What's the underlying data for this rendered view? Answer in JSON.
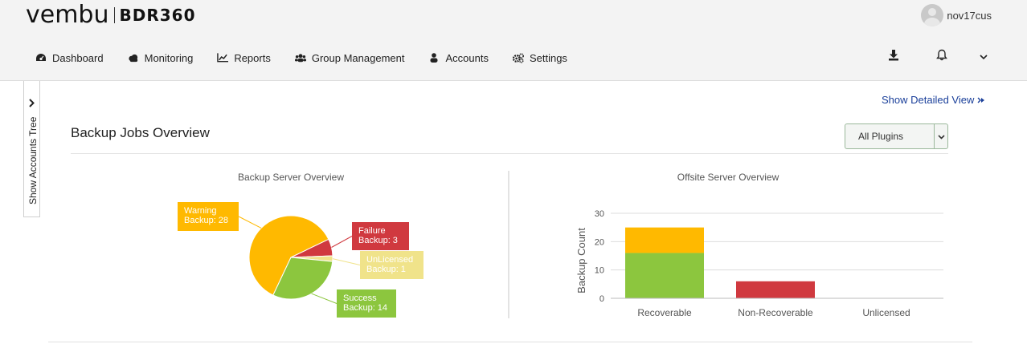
{
  "header": {
    "logo": "vembu",
    "product": "BDR360",
    "username": "nov17cus"
  },
  "nav": {
    "items": [
      {
        "label": "Dashboard",
        "icon": "dashboard-icon"
      },
      {
        "label": "Monitoring",
        "icon": "cloud-icon"
      },
      {
        "label": "Reports",
        "icon": "line-chart-icon"
      },
      {
        "label": "Group Management",
        "icon": "users-icon"
      },
      {
        "label": "Accounts",
        "icon": "user-icon"
      },
      {
        "label": "Settings",
        "icon": "gears-icon"
      }
    ],
    "right_icons": [
      "download-icon",
      "bell-icon",
      "chevron-down-icon"
    ]
  },
  "sidebar_tab": {
    "label": "Show Accounts Tree"
  },
  "main": {
    "detail_link": "Show Detailed View",
    "title": "Backup Jobs Overview",
    "filter": {
      "selected": "All Plugins"
    }
  },
  "colors": {
    "warning": "#ffb900",
    "failure": "#d0393f",
    "unlicensed": "#f0e38a",
    "success": "#8cc63e"
  },
  "chart_data": [
    {
      "type": "pie",
      "title": "Backup Server Overview",
      "slices": [
        {
          "label": "Warning Backup",
          "value": 28,
          "color": "#ffb900",
          "label_lines": [
            "Warning",
            "Backup: 28"
          ]
        },
        {
          "label": "Failure Backup",
          "value": 3,
          "color": "#d0393f",
          "label_lines": [
            "Failure",
            "Backup: 3"
          ]
        },
        {
          "label": "UnLicensed Backup",
          "value": 1,
          "color": "#f0e38a",
          "label_lines": [
            "UnLicensed",
            "Backup: 1"
          ]
        },
        {
          "label": "Success Backup",
          "value": 14,
          "color": "#8cc63e",
          "label_lines": [
            "Success",
            "Backup: 14"
          ]
        }
      ]
    },
    {
      "type": "bar",
      "stacked": true,
      "title": "Offsite Server Overview",
      "categories": [
        "Recoverable",
        "Non-Recoverable",
        "Unlicensed"
      ],
      "ylabel": "Backup Count",
      "ylim": [
        0,
        30
      ],
      "yticks": [
        0,
        10,
        20,
        30
      ],
      "grid": true,
      "series": [
        {
          "color": "#8cc63e",
          "values": [
            16,
            0,
            0
          ]
        },
        {
          "color": "#ffb900",
          "values": [
            9,
            0,
            0
          ]
        },
        {
          "color": "#d0393f",
          "values": [
            0,
            6,
            0
          ]
        }
      ]
    }
  ]
}
